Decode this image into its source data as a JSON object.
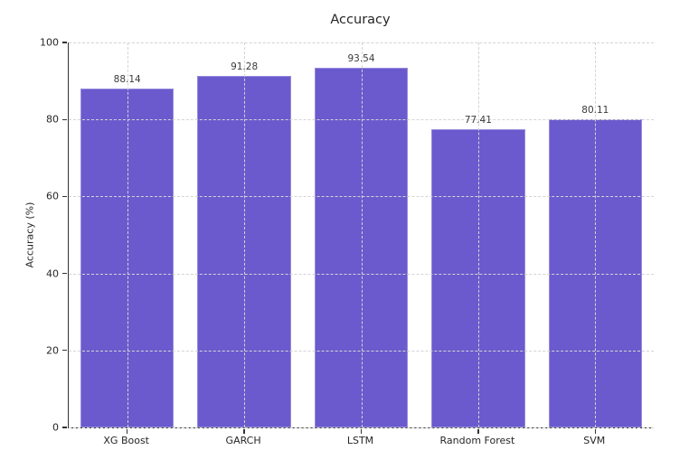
{
  "chart_data": {
    "type": "bar",
    "title": "Accuracy",
    "xlabel": "",
    "ylabel": "Accuracy (%)",
    "categories": [
      "XG Boost",
      "GARCH",
      "LSTM",
      "Random Forest",
      "SVM"
    ],
    "values": [
      88.14,
      91.28,
      93.54,
      77.41,
      80.11
    ],
    "value_labels": [
      "88.14",
      "91.28",
      "93.54",
      "77.41",
      "80.11"
    ],
    "ylim": [
      0,
      100
    ],
    "yticks": [
      0,
      20,
      40,
      60,
      80,
      100
    ],
    "ytick_labels": [
      "0",
      "20",
      "40",
      "60",
      "80",
      "100"
    ],
    "grid": "both, dashed, drawn above bars",
    "legend": "none",
    "bar_width_fraction": 0.8,
    "colors": {
      "bar_fill": "#6a5acd",
      "bar_edge": "rgba(255,255,255,0.30)",
      "grid_line": "#d4d4d4",
      "spine": "#333333",
      "text": "#262626",
      "value_label_text": "#3a3a3a",
      "background": "#ffffff"
    }
  }
}
